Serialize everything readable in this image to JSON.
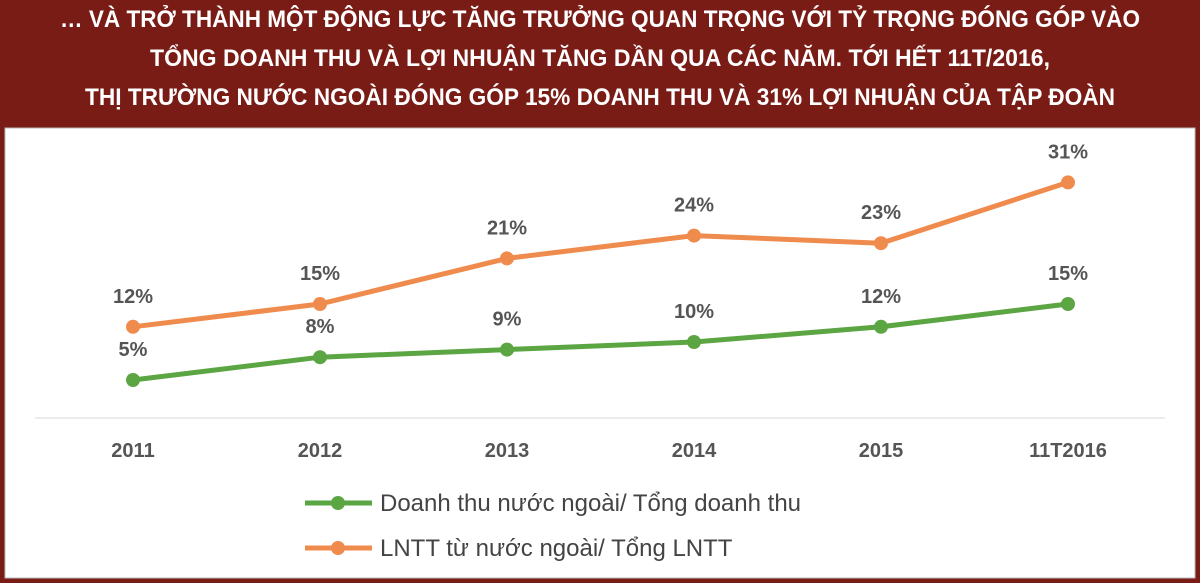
{
  "chart_data": {
    "type": "line",
    "title": [
      "… VÀ TRỞ THÀNH MỘT ĐỘNG LỰC TĂNG TRƯỞNG QUAN TRỌNG VỚI TỶ TRỌNG ĐÓNG GÓP VÀO",
      "TỔNG DOANH THU VÀ LỢI NHUẬN TĂNG DẦN QUA CÁC NĂM. TỚI HẾT 11T/2016,",
      "THỊ TRƯỜNG NƯỚC NGOÀI ĐÓNG GÓP 15% DOANH THU VÀ 31% LỢI NHUẬN CỦA TẬP ĐOÀN"
    ],
    "categories": [
      "2011",
      "2012",
      "2013",
      "2014",
      "2015",
      "11T2016"
    ],
    "series": [
      {
        "name": "Doanh thu nước ngoài/ Tổng doanh thu",
        "color": "#5ba543",
        "values": [
          5,
          8,
          9,
          10,
          12,
          15
        ],
        "value_labels": [
          "5%",
          "8%",
          "9%",
          "10%",
          "12%",
          "15%"
        ]
      },
      {
        "name": "LNTT từ nước ngoài/ Tổng LNTT",
        "color": "#f08b4e",
        "values": [
          12,
          15,
          21,
          24,
          23,
          31
        ],
        "value_labels": [
          "12%",
          "15%",
          "21%",
          "24%",
          "23%",
          "31%"
        ]
      }
    ]
  }
}
